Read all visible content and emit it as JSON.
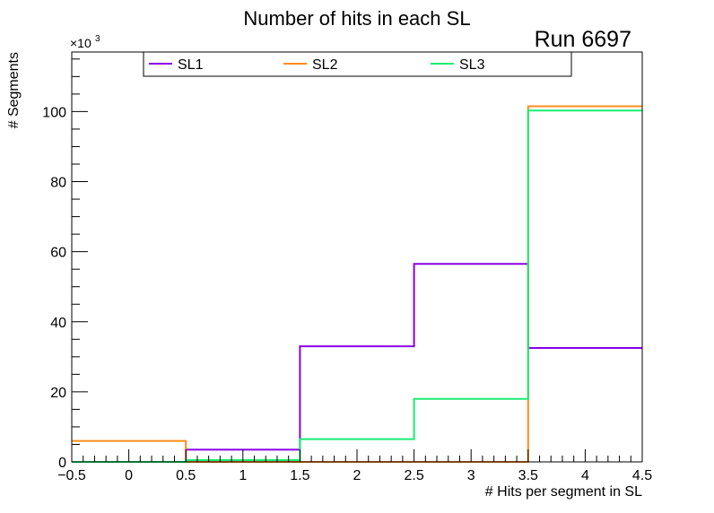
{
  "chart_data": {
    "type": "step",
    "title": "Number of hits in each SL",
    "annotation": "Run 6697",
    "xlabel": "# Hits per segment in SL",
    "ylabel": "# Segments",
    "y_multiplier_label": "×10",
    "y_multiplier_exp": "3",
    "xlim": [
      -0.5,
      4.5
    ],
    "ylim": [
      0,
      117
    ],
    "x_ticks": [
      -0.5,
      0,
      0.5,
      1,
      1.5,
      2,
      2.5,
      3,
      3.5,
      4,
      4.5
    ],
    "x_tick_labels": [
      "−0.5",
      "0",
      "0.5",
      "1",
      "1.5",
      "2",
      "2.5",
      "3",
      "3.5",
      "4",
      "4.5"
    ],
    "y_ticks": [
      0,
      20,
      40,
      60,
      80,
      100
    ],
    "y_tick_labels": [
      "0",
      "20",
      "40",
      "60",
      "80",
      "100"
    ],
    "bin_edges": [
      -0.5,
      0.5,
      1.5,
      2.5,
      3.5,
      4.5
    ],
    "legend_position": "top-center",
    "series": [
      {
        "name": "SL1",
        "color": "#8a00e6",
        "values": [
          0,
          3.5,
          33,
          56.5,
          32.5
        ]
      },
      {
        "name": "SL2",
        "color": "#ff8c1a",
        "values": [
          6,
          0,
          0,
          0,
          101.5
        ]
      },
      {
        "name": "SL3",
        "color": "#1aeb73",
        "values": [
          0,
          0.5,
          6.5,
          18,
          100.3
        ]
      }
    ]
  }
}
